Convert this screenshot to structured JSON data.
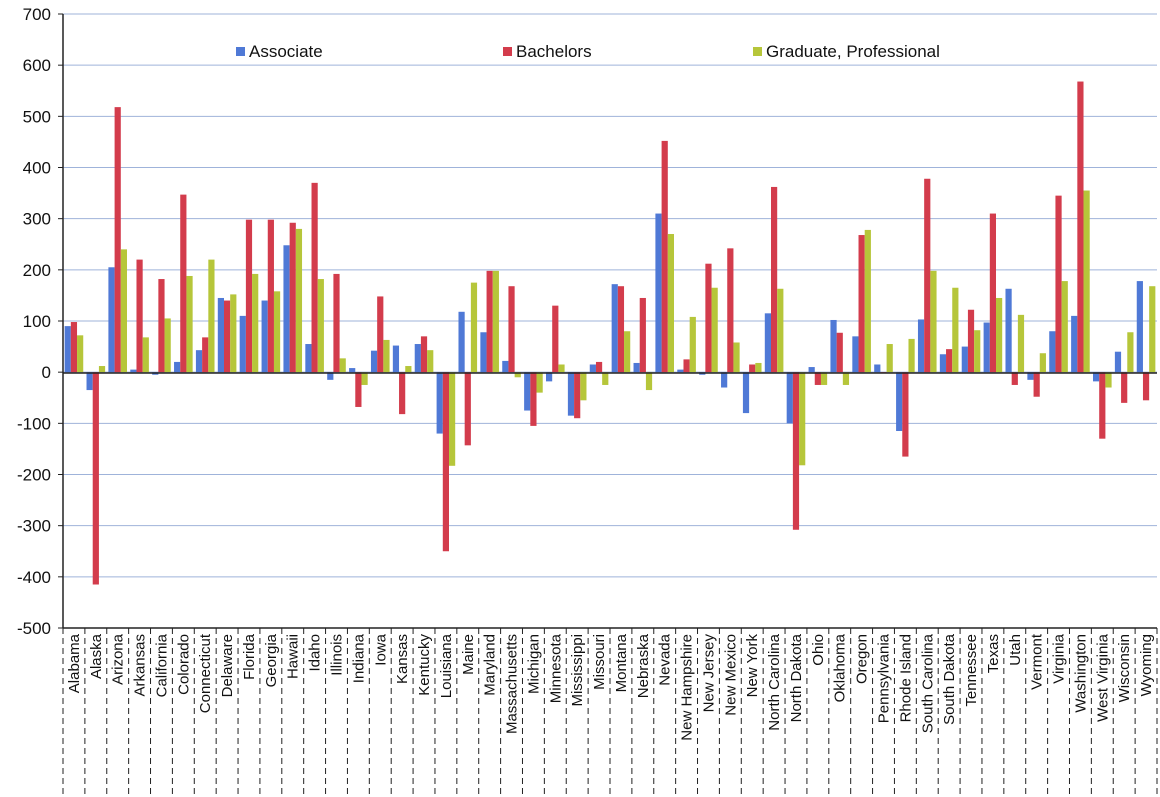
{
  "chart_data": {
    "type": "bar",
    "ylim": [
      -500,
      700
    ],
    "yticks": [
      700,
      600,
      500,
      400,
      300,
      200,
      100,
      0,
      -100,
      -200,
      -300,
      -400,
      -500
    ],
    "grid": true,
    "legend_position": "top",
    "categories": [
      "Alabama",
      "Alaska",
      "Arizona",
      "Arkansas",
      "California",
      "Colorado",
      "Connecticut",
      "Delaware",
      "Florida",
      "Georgia",
      "Hawaii",
      "Idaho",
      "Illinois",
      "Indiana",
      "Iowa",
      "Kansas",
      "Kentucky",
      "Louisiana",
      "Maine",
      "Maryland",
      "Massachusetts",
      "Michigan",
      "Minnesota",
      "Mississippi",
      "Missouri",
      "Montana",
      "Nebraska",
      "Nevada",
      "New Hampshire",
      "New Jersey",
      "New Mexico",
      "New York",
      "North Carolina",
      "North Dakota",
      "Ohio",
      "Oklahoma",
      "Oregon",
      "Pennsylvania",
      "Rhode Island",
      "South Carolina",
      "South Dakota",
      "Tennessee",
      "Texas",
      "Utah",
      "Vermont",
      "Virginia",
      "Washington",
      "West Virginia",
      "Wisconsin",
      "Wyoming"
    ],
    "series": [
      {
        "name": "Associate",
        "color": "#4f79d6",
        "values": [
          90,
          -35,
          205,
          5,
          -5,
          20,
          43,
          145,
          110,
          140,
          248,
          55,
          -15,
          8,
          42,
          52,
          55,
          -120,
          118,
          78,
          22,
          -75,
          -18,
          -85,
          15,
          172,
          18,
          310,
          5,
          -5,
          -30,
          -80,
          115,
          -100,
          10,
          102,
          70,
          15,
          -115,
          103,
          35,
          50,
          97,
          163,
          -15,
          80,
          110,
          -18,
          40,
          178
        ]
      },
      {
        "name": "Bachelors",
        "color": "#d33c4c",
        "values": [
          98,
          -415,
          518,
          220,
          182,
          347,
          68,
          140,
          298,
          298,
          292,
          370,
          192,
          -68,
          148,
          -82,
          70,
          -350,
          -143,
          198,
          168,
          -105,
          130,
          -90,
          20,
          168,
          145,
          452,
          25,
          212,
          242,
          15,
          362,
          -308,
          -25,
          77,
          268,
          0,
          -165,
          378,
          45,
          122,
          310,
          -25,
          -48,
          345,
          568,
          -130,
          -60,
          -55
        ]
      },
      {
        "name": "Graduate, Professional",
        "color": "#b6c63a",
        "values": [
          72,
          12,
          240,
          68,
          105,
          188,
          220,
          152,
          192,
          158,
          280,
          182,
          27,
          -25,
          63,
          12,
          43,
          -183,
          175,
          198,
          -10,
          -40,
          15,
          -55,
          -25,
          80,
          -35,
          270,
          108,
          165,
          58,
          18,
          163,
          -182,
          -25,
          -25,
          278,
          55,
          65,
          198,
          165,
          82,
          145,
          112,
          37,
          178,
          355,
          -30,
          78,
          168
        ]
      }
    ]
  }
}
